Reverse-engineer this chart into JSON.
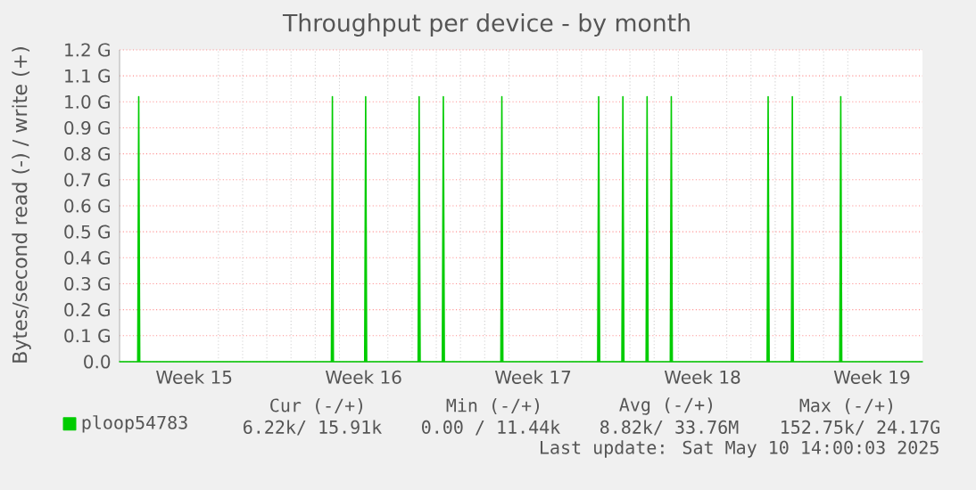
{
  "chart_data": {
    "type": "area",
    "title": "Throughput per device - by month",
    "ylabel": "Bytes/second read (-) / write (+)",
    "x": [
      "2025-04-07T10:00",
      "2025-04-08T04:00",
      "2025-04-08T05:00",
      "2025-04-08T06:00",
      "2025-04-16T04:00",
      "2025-04-16T05:00",
      "2025-04-16T06:00",
      "2025-04-17T13:00",
      "2025-04-17T14:00",
      "2025-04-17T15:00",
      "2025-04-19T18:00",
      "2025-04-19T19:00",
      "2025-04-19T20:00",
      "2025-04-20T18:00",
      "2025-04-20T19:00",
      "2025-04-20T20:00",
      "2025-04-23T04:00",
      "2025-04-23T05:00",
      "2025-04-23T06:00",
      "2025-04-27T04:00",
      "2025-04-27T05:00",
      "2025-04-27T06:00",
      "2025-04-28T04:00",
      "2025-04-28T05:00",
      "2025-04-28T06:00",
      "2025-04-29T04:00",
      "2025-04-29T05:00",
      "2025-04-29T06:00",
      "2025-04-30T04:00",
      "2025-04-30T05:00",
      "2025-04-30T06:00",
      "2025-05-04T04:00",
      "2025-05-04T05:00",
      "2025-05-04T06:00",
      "2025-05-05T04:00",
      "2025-05-05T05:00",
      "2025-05-05T06:00",
      "2025-05-07T04:00",
      "2025-05-07T05:00",
      "2025-05-07T06:00",
      "2025-05-10T14:00"
    ],
    "series": [
      {
        "name": "ploop54783",
        "color": "#00cc00",
        "values": [
          0,
          0,
          1.02,
          0,
          0,
          1.02,
          0,
          0,
          1.02,
          0,
          0,
          1.02,
          0,
          0,
          1.02,
          0,
          0,
          1.02,
          0,
          0,
          1.02,
          0,
          0,
          1.02,
          0,
          0,
          1.02,
          0,
          0,
          1.02,
          0,
          0,
          1.02,
          0,
          0,
          1.02,
          0,
          0,
          1.02,
          0,
          0
        ]
      }
    ],
    "xlim": [
      "2025-04-07T10:00",
      "2025-05-10T14:00"
    ],
    "xticks": [
      {
        "value": "2025-04-10T12:00",
        "label": "Week 15"
      },
      {
        "value": "2025-04-17T12:00",
        "label": "Week 16"
      },
      {
        "value": "2025-04-24T12:00",
        "label": "Week 17"
      },
      {
        "value": "2025-05-01T12:00",
        "label": "Week 18"
      },
      {
        "value": "2025-05-08T12:00",
        "label": "Week 19"
      }
    ],
    "ylim": [
      0,
      1.2
    ],
    "yticks": [
      {
        "value": 0,
        "label": "0.0"
      },
      {
        "value": 0.1,
        "label": "0.1 G"
      },
      {
        "value": 0.2,
        "label": "0.2 G"
      },
      {
        "value": 0.3,
        "label": "0.3 G"
      },
      {
        "value": 0.4,
        "label": "0.4 G"
      },
      {
        "value": 0.5,
        "label": "0.5 G"
      },
      {
        "value": 0.6,
        "label": "0.6 G"
      },
      {
        "value": 0.7,
        "label": "0.7 G"
      },
      {
        "value": 0.8,
        "label": "0.8 G"
      },
      {
        "value": 0.9,
        "label": "0.9 G"
      },
      {
        "value": 1.0,
        "label": "1.0 G"
      },
      {
        "value": 1.1,
        "label": "1.1 G"
      },
      {
        "value": 1.2,
        "label": "1.2 G"
      }
    ],
    "grid": true,
    "legend": "bottom left",
    "annotations": [
      "Cur (-/+)",
      "Min (-/+)",
      "Avg (-/+)",
      "Max (-/+)",
      "6.22k/  15.91k",
      "0.00 /  11.44k",
      "8.82k/  33.76M",
      "152.75k/  24.17G",
      "Last update: Sat May 10 14:00:03 2025"
    ]
  }
}
